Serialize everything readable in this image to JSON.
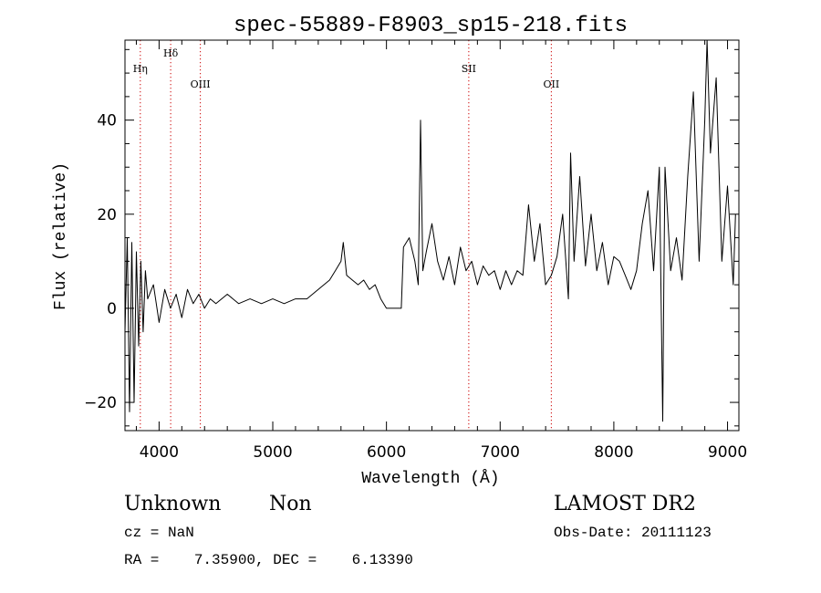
{
  "chart_data": {
    "type": "line",
    "title": "spec-55889-F8903_sp15-218.fits",
    "xlabel": "Wavelength (Å)",
    "ylabel": "Flux (relative)",
    "xlim": [
      3700,
      9100
    ],
    "ylim": [
      -26,
      57
    ],
    "xticks": [
      4000,
      5000,
      6000,
      7000,
      8000,
      9000
    ],
    "xtick_labels": [
      "4000",
      "5000",
      "6000",
      "7000",
      "8000",
      "9000"
    ],
    "yticks": [
      -20,
      0,
      20,
      40
    ],
    "ytick_labels": [
      "−20",
      "0",
      "20",
      "40"
    ],
    "grid": false,
    "line_color": "#000000",
    "marker_color": "#cc0000",
    "lines": [
      {
        "label": "Hη",
        "x": 3835,
        "level": "upper"
      },
      {
        "label": "Hδ",
        "x": 4102,
        "level": "top"
      },
      {
        "label": "OIII",
        "x": 4363,
        "level": "lower"
      },
      {
        "label": "SII",
        "x": 6724,
        "level": "upper"
      },
      {
        "label": "OII",
        "x": 7450,
        "level": "lower"
      }
    ],
    "series": [
      {
        "x": [
          3700,
          3720,
          3740,
          3760,
          3780,
          3800,
          3820,
          3840,
          3860,
          3880,
          3900,
          3950,
          4000,
          4050,
          4100,
          4150,
          4200,
          4250,
          4300,
          4350,
          4400,
          4450,
          4500,
          4600,
          4700,
          4800,
          4900,
          5000,
          5100,
          5200,
          5300,
          5400,
          5450,
          5500,
          5550,
          5600,
          5620,
          5650,
          5700,
          5750,
          5800,
          5850,
          5900,
          5950,
          6000,
          6050,
          6100,
          6130,
          6150,
          6200,
          6250,
          6280,
          6300,
          6320,
          6350,
          6400,
          6450,
          6500,
          6550,
          6600,
          6650,
          6700,
          6750,
          6800,
          6850,
          6900,
          6950,
          7000,
          7050,
          7100,
          7150,
          7200,
          7250,
          7300,
          7350,
          7400,
          7450,
          7500,
          7550,
          7600,
          7620,
          7650,
          7700,
          7750,
          7800,
          7850,
          7900,
          7950,
          8000,
          8050,
          8100,
          8150,
          8200,
          8250,
          8300,
          8350,
          8400,
          8430,
          8440,
          8450,
          8500,
          8550,
          8600,
          8650,
          8700,
          8750,
          8800,
          8820,
          8850,
          8900,
          8950,
          9000,
          9050,
          9070
        ],
        "values": [
          -5,
          15,
          -22,
          14,
          -20,
          12,
          -8,
          10,
          -5,
          8,
          2,
          5,
          -3,
          4,
          0,
          3,
          -2,
          4,
          1,
          3,
          0,
          2,
          1,
          3,
          1,
          2,
          1,
          2,
          1,
          2,
          2,
          4,
          5,
          6,
          8,
          10,
          14,
          7,
          6,
          5,
          6,
          4,
          5,
          2,
          0,
          0,
          0,
          0,
          13,
          15,
          10,
          5,
          40,
          8,
          12,
          18,
          10,
          6,
          11,
          5,
          13,
          8,
          10,
          5,
          9,
          7,
          8,
          4,
          8,
          5,
          8,
          7,
          22,
          10,
          18,
          5,
          7,
          11,
          20,
          2,
          33,
          10,
          28,
          9,
          20,
          8,
          14,
          5,
          11,
          10,
          7,
          4,
          8,
          18,
          25,
          8,
          30,
          -24,
          5,
          30,
          8,
          15,
          6,
          28,
          46,
          10,
          40,
          57,
          33,
          49,
          10,
          26,
          5,
          20
        ]
      }
    ]
  },
  "info": {
    "class": "Unknown",
    "subclass": "Non",
    "survey": "LAMOST DR2",
    "cz": "cz = NaN",
    "obs_date": "Obs-Date: 20111123",
    "radec": "RA =    7.35900, DEC =    6.13390"
  }
}
